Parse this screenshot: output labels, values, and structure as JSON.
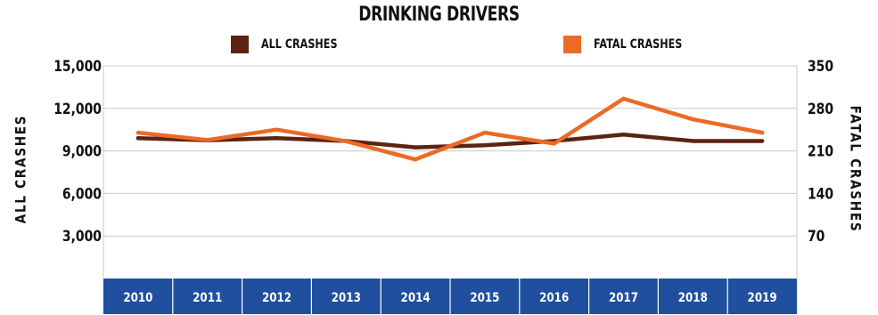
{
  "chart_data": {
    "type": "line",
    "title": "DRINKING DRIVERS",
    "categories": [
      "2010",
      "2011",
      "2012",
      "2013",
      "2014",
      "2015",
      "2016",
      "2017",
      "2018",
      "2019"
    ],
    "series": [
      {
        "name": "ALL CRASHES",
        "axis": "left",
        "color": "#5a2312",
        "values": [
          9900,
          9750,
          9900,
          9700,
          9250,
          9400,
          9700,
          10150,
          9700,
          9700
        ]
      },
      {
        "name": "FATAL CRASHES",
        "axis": "right",
        "color": "#ec6a25",
        "values": [
          240,
          228,
          245,
          226,
          196,
          240,
          222,
          296,
          262,
          240
        ]
      }
    ],
    "ylabel": "ALL CRASHES",
    "y2label": "FATAL CRASHES",
    "ylim": [
      0,
      15000
    ],
    "y2lim": [
      0,
      350
    ],
    "yticks": [
      "15,000",
      "12,000",
      "9,000",
      "6,000",
      "3,000"
    ],
    "yticks_values": [
      15000,
      12000,
      9000,
      6000,
      3000
    ],
    "y2ticks": [
      "350",
      "280",
      "210",
      "140",
      "70"
    ],
    "y2ticks_values": [
      350,
      280,
      210,
      140,
      70
    ],
    "grid": true,
    "legend_position": "top",
    "axis_band_color": "#1f4f9e"
  }
}
